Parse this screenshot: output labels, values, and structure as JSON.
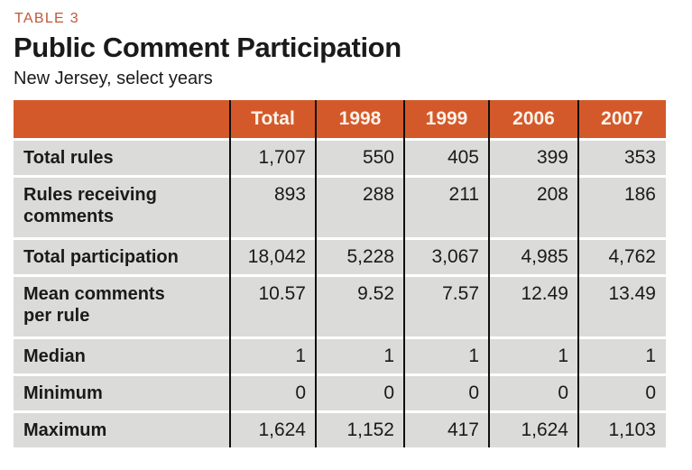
{
  "eyebrow": "TABLE 3",
  "title": "Public Comment Participation",
  "subtitle": "New Jersey, select years",
  "colors": {
    "header_bg": "#d4592a",
    "row_bg": "#dbdbd9",
    "eyebrow_color": "#c2573a",
    "header_text": "#faf3ea",
    "body_text": "#1a1a1a",
    "divider": "#0f0f0f"
  },
  "table": {
    "columns": [
      "",
      "Total",
      "1998",
      "1999",
      "2006",
      "2007"
    ],
    "rows": [
      {
        "label": "Total rules",
        "values": [
          "1,707",
          "550",
          "405",
          "399",
          "353"
        ]
      },
      {
        "label": "Rules receiving\ncomments",
        "values": [
          "893",
          "288",
          "211",
          "208",
          "186"
        ]
      },
      {
        "label": "Total participation",
        "values": [
          "18,042",
          "5,228",
          "3,067",
          "4,985",
          "4,762"
        ]
      },
      {
        "label": "Mean comments\nper rule",
        "values": [
          "10.57",
          "9.52",
          "7.57",
          "12.49",
          "13.49"
        ]
      },
      {
        "label": "Median",
        "values": [
          "1",
          "1",
          "1",
          "1",
          "1"
        ]
      },
      {
        "label": "Minimum",
        "values": [
          "0",
          "0",
          "0",
          "0",
          "0"
        ]
      },
      {
        "label": "Maximum",
        "values": [
          "1,624",
          "1,152",
          "417",
          "1,624",
          "1,103"
        ]
      }
    ]
  }
}
